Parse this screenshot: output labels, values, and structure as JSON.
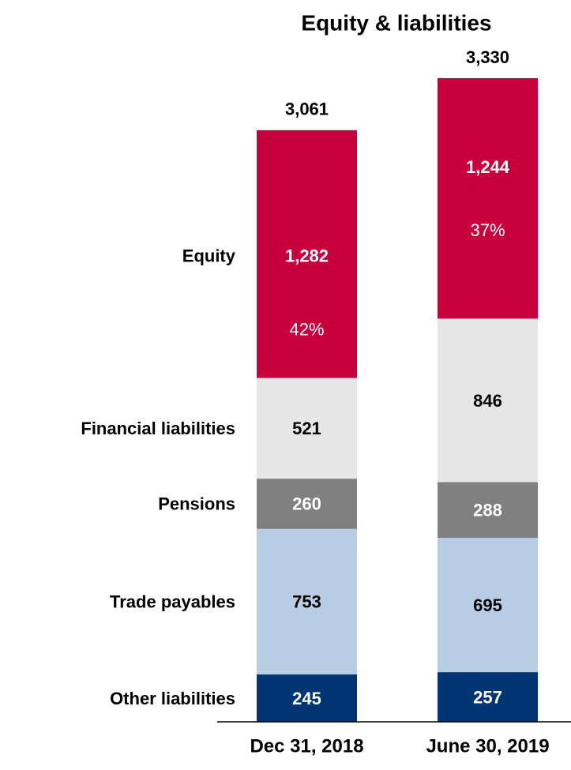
{
  "chart_data": {
    "type": "stacked_bar",
    "title": "Equity & liabilities",
    "categories": [
      "Dec 31, 2018",
      "June 30, 2019"
    ],
    "series": [
      {
        "name": "Other liabilities",
        "color": "#003574",
        "values": [
          245,
          257
        ]
      },
      {
        "name": "Trade payables",
        "color": "#b8cce4",
        "values": [
          753,
          695
        ]
      },
      {
        "name": "Pensions",
        "color": "#808080",
        "values": [
          260,
          288
        ]
      },
      {
        "name": "Financial liabilities",
        "color": "#e6e6e6",
        "values": [
          521,
          846
        ],
        "value_labels": [
          "521",
          "846"
        ]
      },
      {
        "name": "Equity",
        "color": "#c8003c",
        "values": [
          1282,
          1244
        ],
        "value_labels": [
          "1,282",
          "1,244"
        ],
        "shares": [
          42,
          37
        ],
        "share_labels": [
          "42%",
          "37%"
        ]
      }
    ],
    "totals": [
      3061,
      3330
    ],
    "total_labels": [
      "3,061",
      "3,330"
    ]
  }
}
